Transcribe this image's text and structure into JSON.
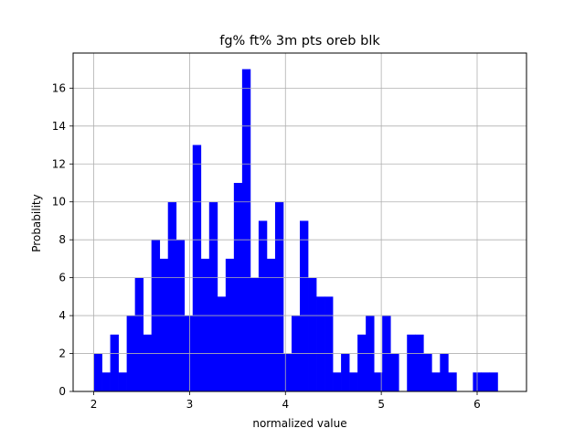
{
  "chart_data": {
    "type": "bar",
    "title": "fg% ft% 3m pts oreb blk",
    "xlabel": "normalized value",
    "ylabel": "Probability",
    "xlim": [
      1.785,
      6.515
    ],
    "ylim": [
      0,
      17.85
    ],
    "xticks": [
      2,
      3,
      4,
      5,
      6
    ],
    "yticks": [
      0,
      2,
      4,
      6,
      8,
      10,
      12,
      14,
      16
    ],
    "grid": true,
    "bar_color": "#0000ff",
    "bin_start": 2.0,
    "bin_width": 0.086,
    "values": [
      2,
      1,
      3,
      1,
      4,
      6,
      3,
      8,
      7,
      10,
      8,
      4,
      13,
      7,
      10,
      5,
      7,
      11,
      17,
      6,
      9,
      7,
      10,
      2,
      4,
      9,
      6,
      5,
      5,
      1,
      2,
      1,
      3,
      4,
      1,
      4,
      2,
      0,
      3,
      3,
      2,
      1,
      2,
      1,
      0,
      0,
      1,
      1,
      1,
      0,
      0
    ]
  }
}
